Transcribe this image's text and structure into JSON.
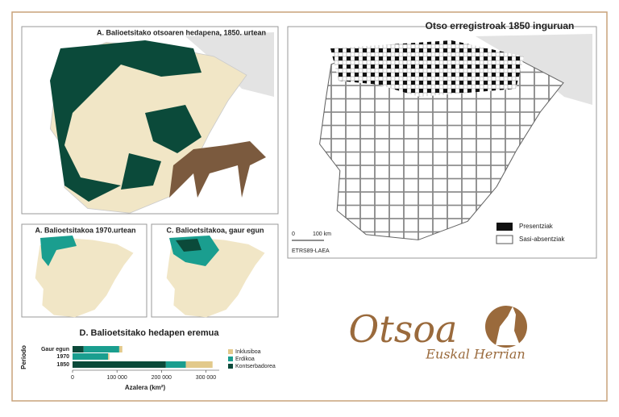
{
  "panels": {
    "map_1850": {
      "title": "A. Balioetsitako otsoaren hedapena, 1850. urtean"
    },
    "map_1970": {
      "title": "A. Balioetsitakoa 1970.urtean"
    },
    "map_today": {
      "title": "C. Balioetsitakoa, gaur egun"
    },
    "records_map": {
      "title": "Otso erregistroak 1850 inguruan",
      "legend": [
        "Presentziak",
        "Sasi-absentziak"
      ],
      "scale": [
        "0",
        "100 km"
      ],
      "projection": "ETRS89-LAEA"
    }
  },
  "chart_data": {
    "type": "bar",
    "orientation": "horizontal",
    "stacked": true,
    "title": "D. Balioetsitako hedapen eremua",
    "x_label": "Azalera (km²)",
    "y_label": "Periodo",
    "categories": [
      "Gaur egun",
      "1970",
      "1850"
    ],
    "series": [
      {
        "name": "Kontserbadorea",
        "color": "#0b4a3a",
        "values": [
          25000,
          0,
          210000
        ]
      },
      {
        "name": "Erdikoa",
        "color": "#1a9e8f",
        "values": [
          80000,
          80000,
          45000
        ]
      },
      {
        "name": "Inklusiboa",
        "color": "#e2c98b",
        "values": [
          7000,
          3000,
          60000
        ]
      }
    ],
    "xlim": [
      0,
      330000
    ],
    "xticks": [
      0,
      {
        "value": 100000,
        "label": "100 000"
      },
      {
        "value": 200000,
        "label": "200 000"
      },
      {
        "value": 300000,
        "label": "300 000"
      }
    ]
  },
  "logo": {
    "title": "Otsoa",
    "subtitle": "Euskal Herrian"
  }
}
